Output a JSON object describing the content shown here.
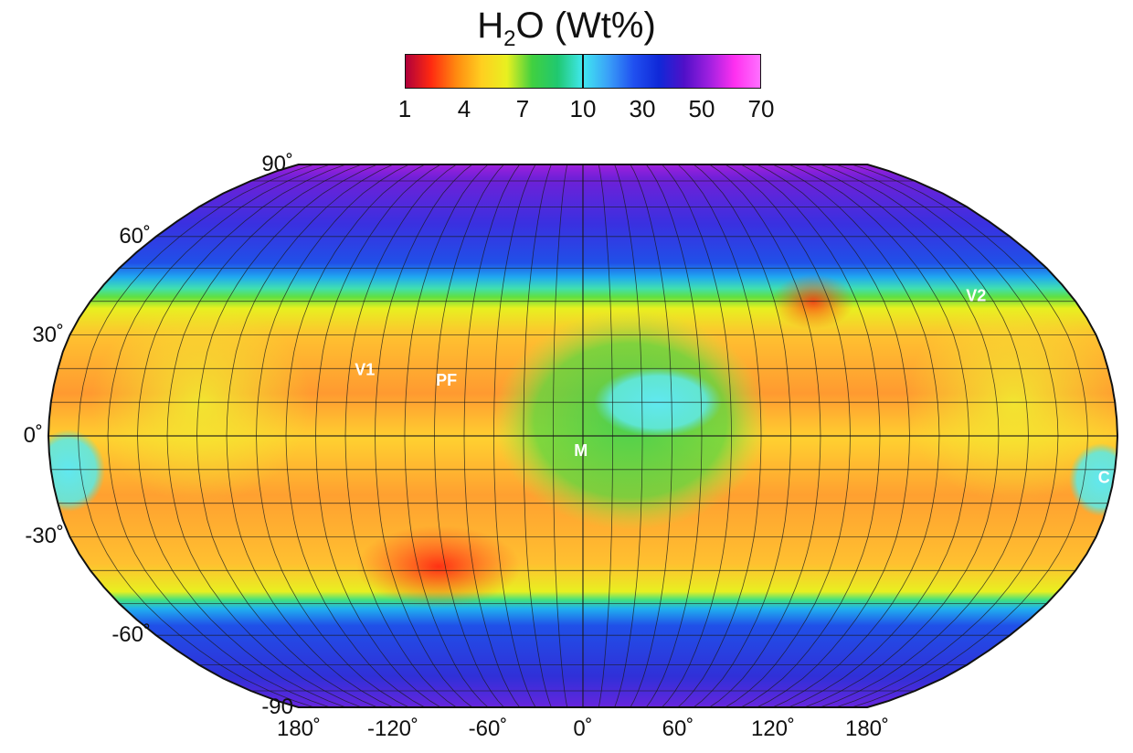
{
  "legend": {
    "title_main": "H",
    "title_sub": "2",
    "title_rest": "O (Wt%)",
    "ticks": [
      "1",
      "4",
      "7",
      "10",
      "30",
      "50",
      "70"
    ],
    "gradient_colors": [
      "#b0003a",
      "#ff2a10",
      "#ff8a10",
      "#ffcf20",
      "#e8f020",
      "#40d040",
      "#20c870",
      "#40e8f0",
      "#3aa0f8",
      "#2050f0",
      "#1028d8",
      "#5010c8",
      "#a020e0",
      "#ff30f0",
      "#ff70ff"
    ]
  },
  "axes": {
    "lat_labels": [
      "90˚",
      "60˚",
      "30˚",
      "0˚",
      "-30˚",
      "-60˚",
      "-90"
    ],
    "lon_labels": [
      "180˚",
      "-120˚",
      "-60˚",
      "0˚",
      "60˚",
      "120˚",
      "180˚"
    ]
  },
  "map_labels": [
    {
      "name": "site-v1",
      "text": "V1"
    },
    {
      "name": "site-pf",
      "text": "PF"
    },
    {
      "name": "site-m",
      "text": "M"
    },
    {
      "name": "site-v2",
      "text": "V2"
    },
    {
      "name": "site-c",
      "text": "C"
    }
  ],
  "colors": {
    "polar": "#6a2ad8",
    "high_lat": "#1e44e0",
    "transition": "#20b8f0",
    "mid": "#ffd030",
    "equatorial": "#ff9a30",
    "low_water": "#ff4020",
    "cyan_region": "#60e8f0",
    "green_region": "#50d050",
    "grid": "#1a1a1a"
  }
}
